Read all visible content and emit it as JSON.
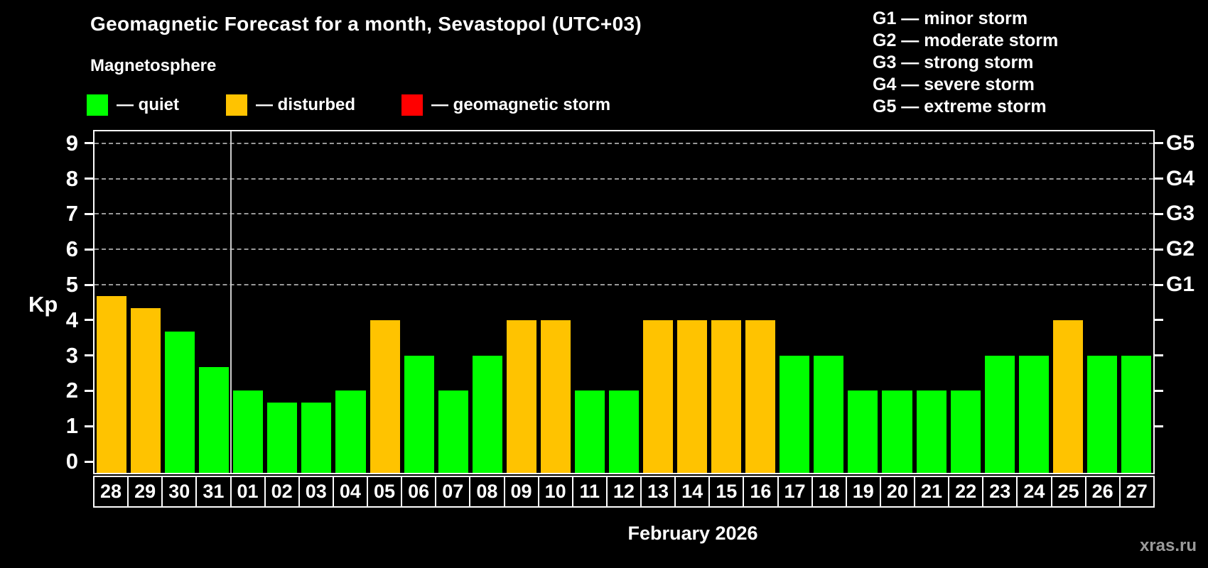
{
  "watermark": "xras.ru",
  "chart_data": {
    "type": "bar",
    "title": "Geomagnetic Forecast for a month, Sevastopol (UTC+03)",
    "subtitle": "Magnetosphere",
    "xlabel": "February 2026",
    "ylabel": "Kp",
    "ylim": [
      0,
      9
    ],
    "yticks": [
      0,
      1,
      2,
      3,
      4,
      5,
      6,
      7,
      8,
      9
    ],
    "grid": "horizontal dashed lines at Kp 5,6,7,8,9",
    "legend_position": "top-left",
    "legend": [
      {
        "label": "— quiet",
        "color": "#00ff00",
        "key": "quiet"
      },
      {
        "label": "— disturbed",
        "color": "#ffc300",
        "key": "disturbed"
      },
      {
        "label": "— geomagnetic storm",
        "color": "#ff0000",
        "key": "storm"
      }
    ],
    "storm_scale_legend": [
      "G1 — minor storm",
      "G2 — moderate storm",
      "G3 — strong storm",
      "G4 — severe storm",
      "G5 — extreme storm"
    ],
    "right_axis": [
      {
        "kp": 5,
        "label": "G1"
      },
      {
        "kp": 6,
        "label": "G2"
      },
      {
        "kp": 7,
        "label": "G3"
      },
      {
        "kp": 8,
        "label": "G4"
      },
      {
        "kp": 9,
        "label": "G5"
      }
    ],
    "right_axis_unlabeled_ticks": [
      1,
      2,
      3,
      4
    ],
    "month_boundary_after_category": "31",
    "categories": [
      "28",
      "29",
      "30",
      "31",
      "01",
      "02",
      "03",
      "04",
      "05",
      "06",
      "07",
      "08",
      "09",
      "10",
      "11",
      "12",
      "13",
      "14",
      "15",
      "16",
      "17",
      "18",
      "19",
      "20",
      "21",
      "22",
      "23",
      "24",
      "25",
      "26",
      "27"
    ],
    "values": [
      4.67,
      4.33,
      3.67,
      2.67,
      2,
      1.67,
      1.67,
      2,
      4,
      3,
      2,
      3,
      4,
      4,
      2,
      2,
      4,
      4,
      4,
      4,
      3,
      3,
      2,
      2,
      2,
      2,
      3,
      3,
      4,
      3,
      3
    ],
    "statuses": [
      "disturbed",
      "disturbed",
      "quiet",
      "quiet",
      "quiet",
      "quiet",
      "quiet",
      "quiet",
      "disturbed",
      "quiet",
      "quiet",
      "quiet",
      "disturbed",
      "disturbed",
      "quiet",
      "quiet",
      "disturbed",
      "disturbed",
      "disturbed",
      "disturbed",
      "quiet",
      "quiet",
      "quiet",
      "quiet",
      "quiet",
      "quiet",
      "quiet",
      "quiet",
      "disturbed",
      "quiet",
      "quiet"
    ],
    "colors": {
      "quiet": "#00ff00",
      "disturbed": "#ffc300",
      "storm": "#ff0000"
    }
  }
}
